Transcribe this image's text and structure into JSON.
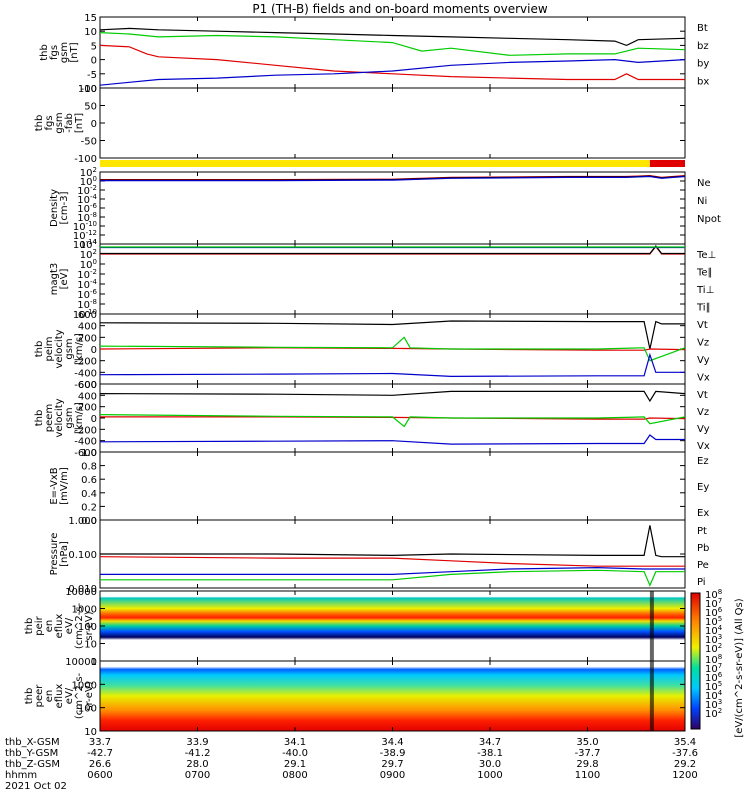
{
  "title": "P1  (TH-B) fields and on-board moments overview",
  "colors": {
    "black": "#000000",
    "red": "#e00000",
    "green": "#00cc00",
    "blue": "#0000cc",
    "yellow": "#ffe600"
  },
  "chart_data": [
    {
      "type": "line",
      "id": "fgs",
      "ylabel": [
        "thb",
        "fgs",
        "gsm",
        "[nT]"
      ],
      "ylim": [
        -10,
        15
      ],
      "yticks": [
        "15",
        "10",
        "5",
        "0",
        "-5",
        "-10"
      ],
      "series": [
        {
          "name": "Bt",
          "color": "#000000",
          "x": [
            0,
            0.05,
            0.1,
            0.2,
            0.3,
            0.4,
            0.5,
            0.6,
            0.7,
            0.8,
            0.88,
            0.9,
            0.92,
            1
          ],
          "y": [
            10.5,
            11,
            10.5,
            10,
            9.5,
            9,
            8.5,
            8,
            7.5,
            7,
            6.5,
            5,
            7,
            7.5
          ]
        },
        {
          "name": "bz",
          "color": "#e00000",
          "x": [
            0,
            0.05,
            0.08,
            0.1,
            0.2,
            0.3,
            0.4,
            0.5,
            0.6,
            0.7,
            0.8,
            0.88,
            0.9,
            0.92,
            1
          ],
          "y": [
            5,
            4.5,
            2,
            1,
            0,
            -2,
            -4,
            -5,
            -6,
            -6.5,
            -7,
            -7,
            -5,
            -7,
            -7
          ]
        },
        {
          "name": "by",
          "color": "#00cc00",
          "x": [
            0,
            0.05,
            0.1,
            0.2,
            0.3,
            0.4,
            0.5,
            0.55,
            0.6,
            0.7,
            0.8,
            0.88,
            0.92,
            1
          ],
          "y": [
            9.5,
            9,
            8,
            8.5,
            8,
            7,
            6,
            3,
            4,
            1.5,
            2,
            2,
            4,
            3.5
          ]
        },
        {
          "name": "bx",
          "color": "#0000cc",
          "x": [
            0,
            0.05,
            0.1,
            0.2,
            0.3,
            0.4,
            0.5,
            0.6,
            0.7,
            0.8,
            0.88,
            0.92,
            1
          ],
          "y": [
            -9,
            -8,
            -7,
            -6.5,
            -5.5,
            -5,
            -4,
            -2,
            -1,
            -0.5,
            0,
            -1,
            0
          ]
        }
      ]
    },
    {
      "type": "line",
      "id": "fgs-dsl",
      "ylabel": [
        "thb",
        "fgs",
        "gsm",
        "-fab",
        "[nT]"
      ],
      "ylim": [
        -120,
        100
      ],
      "yticks": [
        "100",
        "50",
        "0",
        "-50",
        "-100"
      ],
      "series": []
    },
    {
      "type": "bar",
      "id": "quality",
      "segments": [
        {
          "from": 0,
          "to": 0.94,
          "color": "#ffe600"
        },
        {
          "from": 0.94,
          "to": 1,
          "color": "#e00000"
        }
      ]
    },
    {
      "type": "line",
      "id": "density",
      "ylabel": [
        "Density",
        "[cm-3]"
      ],
      "ylim": [
        -14,
        2
      ],
      "yticks": [
        "10^2",
        "10^0",
        "10^-2",
        "10^-4",
        "10^-6",
        "10^-8",
        "10^-10",
        "10^-12",
        "10^-14"
      ],
      "series": [
        {
          "name": "Ne",
          "color": "#e00000",
          "x": [
            0,
            0.3,
            0.5,
            0.6,
            0.8,
            0.9,
            0.94,
            0.96,
            1
          ],
          "y": [
            0.3,
            0.3,
            0.4,
            0.8,
            1.0,
            1.0,
            1.2,
            0.8,
            1.2
          ]
        },
        {
          "name": "Ni",
          "color": "#000000",
          "x": [
            0,
            0.3,
            0.5,
            0.6,
            0.8,
            0.9,
            0.94,
            0.96,
            1
          ],
          "y": [
            0.2,
            0.2,
            0.3,
            0.7,
            0.9,
            0.9,
            1.1,
            0.7,
            1.1
          ]
        },
        {
          "name": "Npot",
          "color": "#0000cc",
          "x": [
            0,
            0.3,
            0.5,
            0.6,
            0.8,
            0.9,
            0.94,
            0.96,
            1
          ],
          "y": [
            0.1,
            0.1,
            0.2,
            0.6,
            0.8,
            0.8,
            1.0,
            0.6,
            1.0
          ]
        }
      ]
    },
    {
      "type": "line",
      "id": "temperature",
      "ylabel": [
        "magt3",
        "[eV]"
      ],
      "ylim": [
        -10,
        4
      ],
      "yticks": [
        "10^4",
        "10^2",
        "10^0",
        "10^-2",
        "10^-4",
        "10^-6",
        "10^-8",
        "10^-10"
      ],
      "series": [
        {
          "name": "Te⊥",
          "color": "#e00000",
          "x": [
            0,
            0.5,
            0.9,
            0.94,
            0.95,
            0.96,
            1
          ],
          "y": [
            2,
            2,
            2,
            2,
            3.5,
            2,
            2
          ]
        },
        {
          "name": "Te∥",
          "color": "#000000",
          "x": [
            0,
            0.5,
            0.9,
            0.94,
            0.95,
            0.96,
            1
          ],
          "y": [
            2.1,
            2.1,
            2.1,
            2.1,
            3.6,
            2.1,
            2.1
          ]
        },
        {
          "name": "Ti⊥",
          "color": "#0000cc",
          "x": [
            0,
            0.5,
            0.9,
            0.94,
            1
          ],
          "y": [
            3.3,
            3.3,
            3.3,
            3.3,
            3.3
          ]
        },
        {
          "name": "Ti∥",
          "color": "#00cc00",
          "x": [
            0,
            0.5,
            0.9,
            0.94,
            1
          ],
          "y": [
            3.4,
            3.4,
            3.4,
            3.4,
            3.4
          ]
        }
      ]
    },
    {
      "type": "line",
      "id": "peim",
      "ylabel": [
        "thb",
        "peim",
        "velocity",
        "gsm",
        "[km/s]"
      ],
      "ylim": [
        -600,
        600
      ],
      "yticks": [
        "600",
        "400",
        "200",
        "0",
        "-200",
        "-400",
        "-600"
      ],
      "series": [
        {
          "name": "Vt",
          "color": "#000000",
          "x": [
            0,
            0.3,
            0.5,
            0.6,
            0.85,
            0.93,
            0.94,
            0.95,
            0.96,
            1
          ],
          "y": [
            450,
            440,
            420,
            480,
            470,
            470,
            0,
            470,
            430,
            430
          ]
        },
        {
          "name": "Vz",
          "color": "#e00000",
          "x": [
            0,
            0.3,
            0.5,
            0.6,
            0.85,
            0.93,
            0.94,
            1
          ],
          "y": [
            0,
            20,
            10,
            0,
            -20,
            -20,
            0,
            -10
          ]
        },
        {
          "name": "Vy",
          "color": "#00cc00",
          "x": [
            0,
            0.3,
            0.5,
            0.52,
            0.53,
            0.6,
            0.85,
            0.93,
            0.94,
            1
          ],
          "y": [
            50,
            30,
            20,
            200,
            20,
            0,
            0,
            20,
            -200,
            20
          ]
        },
        {
          "name": "Vx",
          "color": "#0000cc",
          "x": [
            0,
            0.3,
            0.5,
            0.6,
            0.85,
            0.93,
            0.94,
            0.95,
            1
          ],
          "y": [
            -440,
            -430,
            -420,
            -470,
            -460,
            -460,
            -100,
            -400,
            -400
          ]
        }
      ]
    },
    {
      "type": "line",
      "id": "peem",
      "ylabel": [
        "thb",
        "peem",
        "velocity",
        "gsm",
        "[km/s]"
      ],
      "ylim": [
        -600,
        600
      ],
      "yticks": [
        "600",
        "400",
        "200",
        "0",
        "-200",
        "-400",
        "-600"
      ],
      "series": [
        {
          "name": "Vt",
          "color": "#000000",
          "x": [
            0,
            0.3,
            0.5,
            0.6,
            0.85,
            0.93,
            0.94,
            0.95,
            1
          ],
          "y": [
            430,
            420,
            400,
            470,
            470,
            470,
            300,
            470,
            430
          ]
        },
        {
          "name": "Vz",
          "color": "#e00000",
          "x": [
            0,
            0.3,
            0.5,
            0.6,
            0.85,
            0.93,
            0.94,
            1
          ],
          "y": [
            20,
            20,
            10,
            0,
            -20,
            -20,
            0,
            -10
          ]
        },
        {
          "name": "Vy",
          "color": "#00cc00",
          "x": [
            0,
            0.3,
            0.5,
            0.52,
            0.53,
            0.6,
            0.85,
            0.93,
            0.94,
            1
          ],
          "y": [
            60,
            30,
            20,
            -150,
            20,
            0,
            0,
            20,
            -100,
            20
          ]
        },
        {
          "name": "Vx",
          "color": "#0000cc",
          "x": [
            0,
            0.3,
            0.5,
            0.6,
            0.85,
            0.93,
            0.94,
            0.95,
            1
          ],
          "y": [
            -420,
            -410,
            -400,
            -460,
            -450,
            -450,
            -300,
            -380,
            -380
          ]
        }
      ]
    },
    {
      "type": "line",
      "id": "efield",
      "ylabel": [
        "E=-VxB",
        "[mV/m]"
      ],
      "ylim": [
        0,
        1
      ],
      "yticks": [
        "1.0",
        "0.8",
        "0.6",
        "0.4",
        "0.2",
        "0.0"
      ],
      "legend": [
        "Ez",
        "Ey",
        "Ex"
      ],
      "legend_colors": [
        "#e00000",
        "#00cc00",
        "#0000cc"
      ],
      "series": []
    },
    {
      "type": "line",
      "id": "pressure",
      "ylabel": [
        "Pressure",
        "[nPa]"
      ],
      "ylim": [
        -2.5,
        0
      ],
      "yticks": [
        "1.000",
        "0.100",
        "0.010"
      ],
      "series": [
        {
          "name": "Pt",
          "color": "#000000",
          "x": [
            0,
            0.3,
            0.5,
            0.6,
            0.85,
            0.93,
            0.94,
            0.95,
            0.96,
            1
          ],
          "y": [
            -1.25,
            -1.25,
            -1.3,
            -1.25,
            -1.3,
            -1.3,
            -0.2,
            -1.3,
            -1.35,
            -1.35
          ]
        },
        {
          "name": "Pb",
          "color": "#e00000",
          "x": [
            0,
            0.3,
            0.5,
            0.6,
            0.7,
            0.85,
            0.93,
            0.95,
            1
          ],
          "y": [
            -1.35,
            -1.4,
            -1.4,
            -1.5,
            -1.6,
            -1.7,
            -1.7,
            -1.7,
            -1.7
          ]
        },
        {
          "name": "Pe",
          "color": "#00cc00",
          "x": [
            0,
            0.3,
            0.5,
            0.6,
            0.7,
            0.85,
            0.93,
            0.94,
            0.95,
            1
          ],
          "y": [
            -2.2,
            -2.2,
            -2.2,
            -2.0,
            -1.9,
            -1.85,
            -1.9,
            -2.4,
            -1.9,
            -1.9
          ]
        },
        {
          "name": "Pi",
          "color": "#0000cc",
          "x": [
            0,
            0.3,
            0.5,
            0.6,
            0.7,
            0.85,
            0.93,
            0.95,
            1
          ],
          "y": [
            -2.0,
            -2.0,
            -2.0,
            -1.9,
            -1.8,
            -1.75,
            -1.8,
            -1.8,
            -1.8
          ]
        }
      ]
    },
    {
      "type": "heatmap",
      "id": "peir",
      "ylabel": [
        "thb",
        "peir",
        "en",
        "eflux",
        "eV/",
        "(cm^2-s-",
        "sr-eV)"
      ],
      "yticks": [
        "10000",
        "1000",
        "100",
        "10",
        "1"
      ]
    },
    {
      "type": "heatmap",
      "id": "peer",
      "ylabel": [
        "thb",
        "peer",
        "en",
        "eflux",
        "eV/",
        "(cm^2-s-",
        "sr-eV)"
      ],
      "yticks": [
        "10000",
        "1000",
        "100",
        "10"
      ]
    }
  ],
  "colorbar": {
    "label": "[eV/(cm^2-s-sr-eV)] (All Qs)",
    "ticks_top": [
      "10^8",
      "10^7",
      "10^6",
      "10^5",
      "10^4",
      "10^3",
      "10^2"
    ],
    "ticks_bottom": [
      "10^8",
      "10^7",
      "10^6",
      "10^5",
      "10^4",
      "10^3",
      "10^2"
    ]
  },
  "footer": {
    "rows": [
      {
        "label": "thb_X-GSM",
        "values": [
          "33.7",
          "33.9",
          "34.1",
          "34.4",
          "34.7",
          "35.0",
          "35.4"
        ]
      },
      {
        "label": "thb_Y-GSM",
        "values": [
          "-42.7",
          "-41.2",
          "-40.0",
          "-38.9",
          "-38.1",
          "-37.7",
          "-37.6"
        ]
      },
      {
        "label": "thb_Z-GSM",
        "values": [
          "26.6",
          "28.0",
          "29.1",
          "29.7",
          "30.0",
          "29.8",
          "29.2"
        ]
      },
      {
        "label": "hhmm",
        "values": [
          "0600",
          "0700",
          "0800",
          "0900",
          "1000",
          "1100",
          "1200"
        ]
      }
    ],
    "date": "2021 Oct 02"
  }
}
